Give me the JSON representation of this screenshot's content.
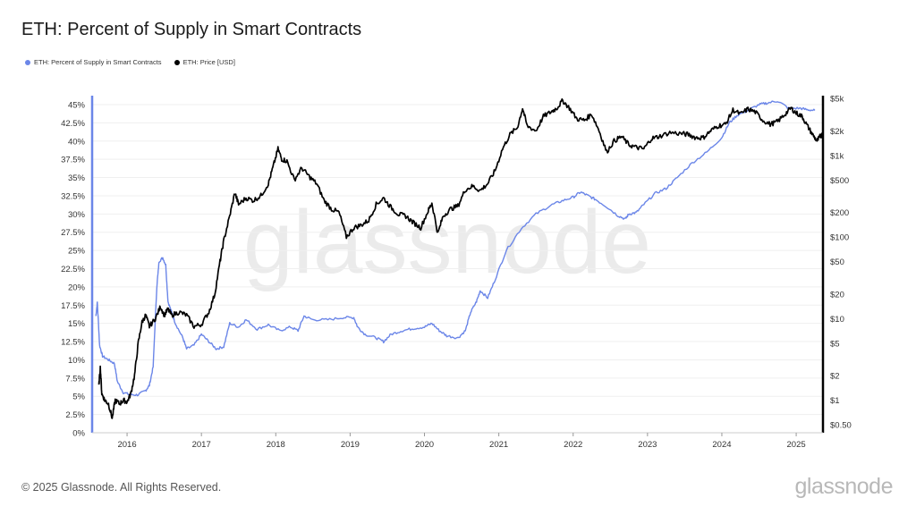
{
  "title": "ETH: Percent of Supply in Smart Contracts",
  "legend": [
    {
      "label": "ETH: Percent of Supply in Smart Contracts",
      "color": "#6b86e8"
    },
    {
      "label": "ETH: Price [USD]",
      "color": "#000000"
    }
  ],
  "watermark": "glassnode",
  "footer": {
    "copyright": "© 2025 Glassnode. All Rights Reserved.",
    "logo": "glassnode"
  },
  "chart_data": {
    "type": "line",
    "x_ticks": [
      "2016",
      "2017",
      "2018",
      "2019",
      "2020",
      "2021",
      "2022",
      "2023",
      "2024",
      "2025"
    ],
    "x_range": [
      2015.53,
      2025.36
    ],
    "y_left": {
      "ticks": [
        "0%",
        "2.5%",
        "5%",
        "7.5%",
        "10%",
        "12.5%",
        "15%",
        "17.5%",
        "20%",
        "22.5%",
        "25%",
        "27.5%",
        "30%",
        "32.5%",
        "35%",
        "37.5%",
        "40%",
        "42.5%",
        "45%"
      ],
      "range": [
        0,
        45
      ]
    },
    "y_right": {
      "scale": "log",
      "ticks": [
        {
          "label": "$0.50",
          "value": 0.5
        },
        {
          "label": "$1",
          "value": 1
        },
        {
          "label": "$2",
          "value": 2
        },
        {
          "label": "$5",
          "value": 5
        },
        {
          "label": "$10",
          "value": 10
        },
        {
          "label": "$20",
          "value": 20
        },
        {
          "label": "$50",
          "value": 50
        },
        {
          "label": "$100",
          "value": 100
        },
        {
          "label": "$200",
          "value": 200
        },
        {
          "label": "$500",
          "value": 500
        },
        {
          "label": "$1k",
          "value": 1000
        },
        {
          "label": "$2k",
          "value": 2000
        },
        {
          "label": "$5k",
          "value": 5000
        }
      ]
    },
    "grid": true,
    "legend_position": "top-left",
    "series": [
      {
        "name": "ETH: Percent of Supply in Smart Contracts",
        "color": "#6b86e8",
        "axis": "left",
        "points": [
          [
            2015.58,
            16.0
          ],
          [
            2015.6,
            17.9
          ],
          [
            2015.63,
            12.0
          ],
          [
            2015.67,
            10.5
          ],
          [
            2015.75,
            10.0
          ],
          [
            2015.83,
            9.5
          ],
          [
            2015.87,
            7.0
          ],
          [
            2015.95,
            5.5
          ],
          [
            2016.05,
            5.2
          ],
          [
            2016.15,
            5.2
          ],
          [
            2016.25,
            5.8
          ],
          [
            2016.3,
            6.5
          ],
          [
            2016.35,
            9.0
          ],
          [
            2016.4,
            20.0
          ],
          [
            2016.43,
            23.5
          ],
          [
            2016.48,
            24.0
          ],
          [
            2016.52,
            23.0
          ],
          [
            2016.55,
            18.0
          ],
          [
            2016.6,
            16.5
          ],
          [
            2016.65,
            15.0
          ],
          [
            2016.75,
            13.0
          ],
          [
            2016.8,
            11.5
          ],
          [
            2016.9,
            12.0
          ],
          [
            2017.0,
            13.5
          ],
          [
            2017.1,
            12.5
          ],
          [
            2017.2,
            11.5
          ],
          [
            2017.3,
            11.8
          ],
          [
            2017.38,
            15.0
          ],
          [
            2017.5,
            14.5
          ],
          [
            2017.6,
            15.5
          ],
          [
            2017.75,
            14.2
          ],
          [
            2017.9,
            14.8
          ],
          [
            2018.05,
            14.0
          ],
          [
            2018.2,
            14.5
          ],
          [
            2018.3,
            14.0
          ],
          [
            2018.38,
            16.0
          ],
          [
            2018.5,
            15.5
          ],
          [
            2018.7,
            15.5
          ],
          [
            2018.9,
            15.8
          ],
          [
            2019.05,
            15.8
          ],
          [
            2019.1,
            14.5
          ],
          [
            2019.2,
            13.5
          ],
          [
            2019.35,
            13.0
          ],
          [
            2019.45,
            12.5
          ],
          [
            2019.55,
            13.5
          ],
          [
            2019.7,
            14.0
          ],
          [
            2019.85,
            14.3
          ],
          [
            2020.0,
            14.5
          ],
          [
            2020.1,
            15.0
          ],
          [
            2020.2,
            14.0
          ],
          [
            2020.3,
            13.3
          ],
          [
            2020.45,
            13.0
          ],
          [
            2020.55,
            14.0
          ],
          [
            2020.62,
            16.5
          ],
          [
            2020.7,
            18.0
          ],
          [
            2020.75,
            19.5
          ],
          [
            2020.85,
            18.5
          ],
          [
            2020.95,
            21.0
          ],
          [
            2021.1,
            25.0
          ],
          [
            2021.3,
            28.0
          ],
          [
            2021.5,
            30.0
          ],
          [
            2021.7,
            31.2
          ],
          [
            2021.85,
            31.8
          ],
          [
            2022.0,
            32.3
          ],
          [
            2022.1,
            33.0
          ],
          [
            2022.2,
            32.5
          ],
          [
            2022.3,
            32.0
          ],
          [
            2022.45,
            31.0
          ],
          [
            2022.6,
            29.8
          ],
          [
            2022.7,
            29.3
          ],
          [
            2022.75,
            30.0
          ],
          [
            2022.85,
            30.2
          ],
          [
            2022.95,
            31.3
          ],
          [
            2023.1,
            32.8
          ],
          [
            2023.25,
            33.5
          ],
          [
            2023.4,
            35.0
          ],
          [
            2023.6,
            37.0
          ],
          [
            2023.8,
            38.5
          ],
          [
            2024.0,
            40.5
          ],
          [
            2024.1,
            42.5
          ],
          [
            2024.2,
            43.5
          ],
          [
            2024.35,
            44.2
          ],
          [
            2024.5,
            45.0
          ],
          [
            2024.6,
            45.2
          ],
          [
            2024.75,
            45.5
          ],
          [
            2024.9,
            44.5
          ],
          [
            2025.05,
            44.5
          ],
          [
            2025.15,
            44.3
          ],
          [
            2025.25,
            44.2
          ]
        ]
      },
      {
        "name": "ETH: Price [USD]",
        "color": "#000000",
        "axis": "right",
        "points": [
          [
            2015.62,
            1.5
          ],
          [
            2015.64,
            2.5
          ],
          [
            2015.66,
            1.2
          ],
          [
            2015.7,
            1.0
          ],
          [
            2015.75,
            0.9
          ],
          [
            2015.8,
            0.6
          ],
          [
            2015.84,
            1.0
          ],
          [
            2015.9,
            0.9
          ],
          [
            2015.95,
            1.0
          ],
          [
            2016.0,
            0.95
          ],
          [
            2016.05,
            1.2
          ],
          [
            2016.1,
            2.0
          ],
          [
            2016.15,
            5.0
          ],
          [
            2016.2,
            9.0
          ],
          [
            2016.25,
            11.0
          ],
          [
            2016.3,
            8.0
          ],
          [
            2016.38,
            10.0
          ],
          [
            2016.45,
            14.0
          ],
          [
            2016.5,
            11.0
          ],
          [
            2016.55,
            13.0
          ],
          [
            2016.6,
            11.0
          ],
          [
            2016.7,
            12.0
          ],
          [
            2016.8,
            11.0
          ],
          [
            2016.9,
            8.0
          ],
          [
            2017.0,
            8.5
          ],
          [
            2017.1,
            12.0
          ],
          [
            2017.18,
            20.0
          ],
          [
            2017.25,
            50.0
          ],
          [
            2017.3,
            90.0
          ],
          [
            2017.38,
            180.0
          ],
          [
            2017.45,
            350.0
          ],
          [
            2017.5,
            250.0
          ],
          [
            2017.6,
            300.0
          ],
          [
            2017.7,
            280.0
          ],
          [
            2017.8,
            320.0
          ],
          [
            2017.9,
            450.0
          ],
          [
            2017.96,
            700.0
          ],
          [
            2018.03,
            1200.0
          ],
          [
            2018.08,
            900.0
          ],
          [
            2018.15,
            850.0
          ],
          [
            2018.25,
            500.0
          ],
          [
            2018.35,
            700.0
          ],
          [
            2018.45,
            550.0
          ],
          [
            2018.55,
            450.0
          ],
          [
            2018.65,
            280.0
          ],
          [
            2018.75,
            220.0
          ],
          [
            2018.85,
            200.0
          ],
          [
            2018.95,
            100.0
          ],
          [
            2019.05,
            130.0
          ],
          [
            2019.15,
            140.0
          ],
          [
            2019.25,
            160.0
          ],
          [
            2019.35,
            250.0
          ],
          [
            2019.45,
            300.0
          ],
          [
            2019.55,
            230.0
          ],
          [
            2019.65,
            190.0
          ],
          [
            2019.75,
            180.0
          ],
          [
            2019.85,
            150.0
          ],
          [
            2019.95,
            130.0
          ],
          [
            2020.05,
            210.0
          ],
          [
            2020.1,
            260.0
          ],
          [
            2020.18,
            110.0
          ],
          [
            2020.25,
            180.0
          ],
          [
            2020.35,
            220.0
          ],
          [
            2020.45,
            240.0
          ],
          [
            2020.55,
            380.0
          ],
          [
            2020.65,
            420.0
          ],
          [
            2020.75,
            370.0
          ],
          [
            2020.85,
            450.0
          ],
          [
            2020.95,
            650.0
          ],
          [
            2021.05,
            1200.0
          ],
          [
            2021.15,
            1800.0
          ],
          [
            2021.25,
            2200.0
          ],
          [
            2021.32,
            3800.0
          ],
          [
            2021.38,
            2300.0
          ],
          [
            2021.5,
            2000.0
          ],
          [
            2021.6,
            3000.0
          ],
          [
            2021.7,
            3400.0
          ],
          [
            2021.78,
            3800.0
          ],
          [
            2021.86,
            4700.0
          ],
          [
            2021.95,
            3800.0
          ],
          [
            2022.05,
            2800.0
          ],
          [
            2022.15,
            2700.0
          ],
          [
            2022.25,
            3200.0
          ],
          [
            2022.35,
            2000.0
          ],
          [
            2022.45,
            1100.0
          ],
          [
            2022.55,
            1500.0
          ],
          [
            2022.65,
            1700.0
          ],
          [
            2022.75,
            1350.0
          ],
          [
            2022.85,
            1250.0
          ],
          [
            2022.95,
            1200.0
          ],
          [
            2023.05,
            1600.0
          ],
          [
            2023.15,
            1700.0
          ],
          [
            2023.3,
            1900.0
          ],
          [
            2023.45,
            1850.0
          ],
          [
            2023.55,
            1800.0
          ],
          [
            2023.65,
            1650.0
          ],
          [
            2023.75,
            1650.0
          ],
          [
            2023.85,
            2000.0
          ],
          [
            2023.95,
            2300.0
          ],
          [
            2024.05,
            2400.0
          ],
          [
            2024.15,
            3600.0
          ],
          [
            2024.25,
            3200.0
          ],
          [
            2024.35,
            3700.0
          ],
          [
            2024.45,
            3400.0
          ],
          [
            2024.55,
            2700.0
          ],
          [
            2024.65,
            2400.0
          ],
          [
            2024.75,
            2600.0
          ],
          [
            2024.85,
            3200.0
          ],
          [
            2024.93,
            3800.0
          ],
          [
            2025.0,
            3300.0
          ],
          [
            2025.08,
            3000.0
          ],
          [
            2025.15,
            2300.0
          ],
          [
            2025.22,
            1800.0
          ],
          [
            2025.28,
            1500.0
          ],
          [
            2025.32,
            1700.0
          ],
          [
            2025.35,
            1800.0
          ]
        ]
      }
    ]
  }
}
